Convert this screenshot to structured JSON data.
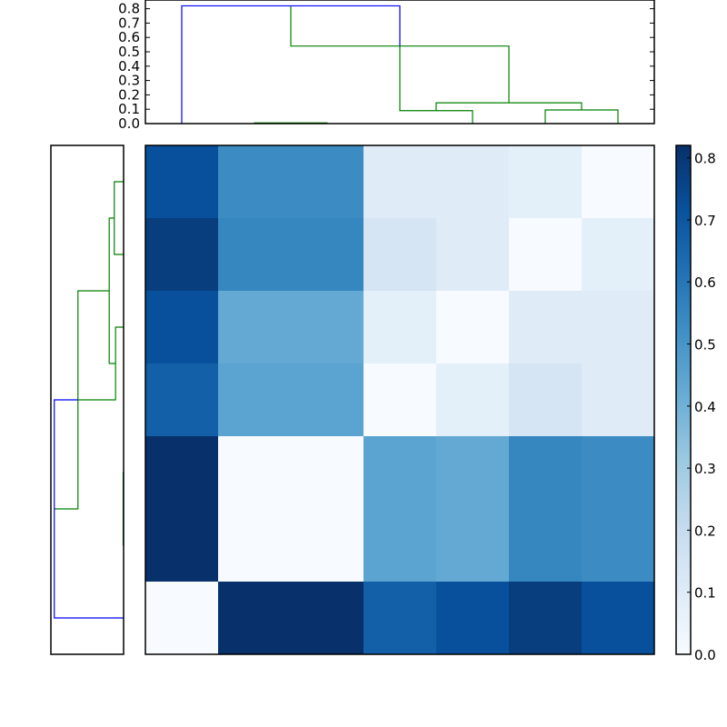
{
  "chart_data": [
    {
      "type": "heatmap",
      "title": "",
      "xlabel": "",
      "ylabel": "",
      "rows": 7,
      "cols": 7,
      "colormap": "Blues",
      "vmin": 0.0,
      "vmax": 0.82,
      "values": [
        [
          0.72,
          0.53,
          0.53,
          0.1,
          0.1,
          0.08,
          0.0
        ],
        [
          0.78,
          0.55,
          0.55,
          0.14,
          0.1,
          0.0,
          0.08
        ],
        [
          0.72,
          0.43,
          0.43,
          0.08,
          0.0,
          0.1,
          0.1
        ],
        [
          0.67,
          0.45,
          0.45,
          0.0,
          0.08,
          0.14,
          0.1
        ],
        [
          0.82,
          0.0,
          0.0,
          0.45,
          0.43,
          0.55,
          0.53
        ],
        [
          0.82,
          0.0,
          0.0,
          0.45,
          0.43,
          0.55,
          0.53
        ],
        [
          0.0,
          0.82,
          0.82,
          0.67,
          0.72,
          0.78,
          0.72
        ]
      ],
      "grid": false
    },
    {
      "type": "dendrogram",
      "position": "top",
      "orientation": "vertical",
      "ylim": [
        0.0,
        0.85
      ],
      "yticks": [
        "0.0",
        "0.1",
        "0.2",
        "0.3",
        "0.4",
        "0.5",
        "0.6",
        "0.7",
        "0.8"
      ],
      "leaf_count": 7,
      "links": [
        {
          "left": 1,
          "right": 2,
          "height": 0.005,
          "color": "#008000"
        },
        {
          "left": 3,
          "right": 4,
          "height": 0.09,
          "color": "#008000"
        },
        {
          "left": 5,
          "right": 6,
          "height": 0.095,
          "color": "#008000"
        },
        {
          "left": 3.5,
          "right": 5.5,
          "height": 0.145,
          "color": "#008000"
        },
        {
          "left": 1.5,
          "right": 4.5,
          "height": 0.54,
          "color": "#008000"
        },
        {
          "left": 0,
          "right": 3.0,
          "height": 0.82,
          "color": "#0000ff"
        }
      ]
    },
    {
      "type": "dendrogram",
      "position": "left",
      "orientation": "horizontal",
      "leaf_count": 7,
      "links": [
        {
          "top": 0,
          "bottom": 1,
          "height": 0.11,
          "color": "#008000"
        },
        {
          "top": 2,
          "bottom": 3,
          "height": 0.095,
          "color": "#008000"
        },
        {
          "top": 0.5,
          "bottom": 2.5,
          "height": 0.17,
          "color": "#008000"
        },
        {
          "top": 4,
          "bottom": 5,
          "height": 0.005,
          "color": "#008000"
        },
        {
          "top": 1.5,
          "bottom": 4.5,
          "height": 0.54,
          "color": "#008000"
        },
        {
          "top": 3.0,
          "bottom": 6,
          "height": 0.82,
          "color": "#0000ff"
        }
      ]
    },
    {
      "type": "colorbar",
      "range": [
        0.0,
        0.82
      ],
      "ticks": [
        "0.0",
        "0.1",
        "0.2",
        "0.3",
        "0.4",
        "0.5",
        "0.6",
        "0.7",
        "0.8"
      ]
    }
  ],
  "colors": {
    "link_above_threshold": "#0000ff",
    "link_cluster": "#008000",
    "axes_edge": "#000000"
  }
}
